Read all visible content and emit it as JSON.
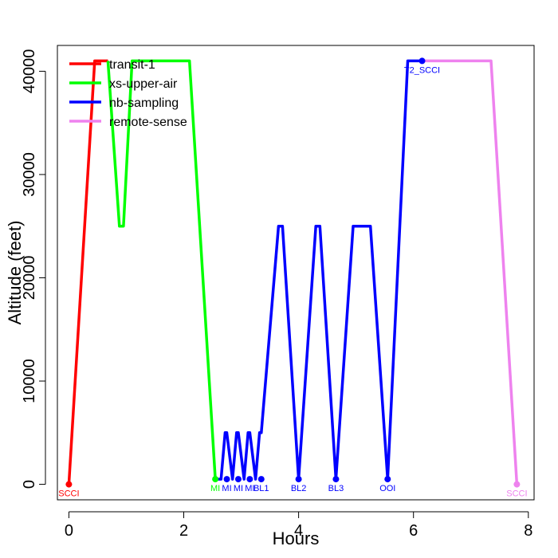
{
  "chart_data": {
    "type": "line",
    "title": "",
    "xlabel": "Hours",
    "ylabel": "Altitude (feet)",
    "xlim": [
      -0.2,
      8.1
    ],
    "ylim": [
      -1500,
      42500
    ],
    "xticks": [
      0,
      2,
      4,
      6,
      8
    ],
    "yticks": [
      0,
      10000,
      20000,
      30000,
      40000
    ],
    "xtick_labels": [
      "0",
      "2",
      "4",
      "6",
      "8"
    ],
    "ytick_labels": [
      "0",
      "10000",
      "20000",
      "30000",
      "40000"
    ],
    "grid": false,
    "legend_position": "top-left",
    "series": [
      {
        "name": "transit-1",
        "color": "#ff0000",
        "x": [
          0,
          0.45,
          0.68
        ],
        "y": [
          0,
          41000,
          41000
        ]
      },
      {
        "name": "xs-upper-air",
        "color": "#00ff00",
        "x": [
          0.68,
          0.88,
          0.95,
          1.1,
          2.1,
          2.55
        ],
        "y": [
          41000,
          25000,
          25000,
          41000,
          41000,
          500
        ]
      },
      {
        "name": "nb-sampling",
        "color": "#0000ff",
        "x": [
          2.55,
          2.65,
          2.72,
          2.75,
          2.85,
          2.92,
          2.95,
          3.05,
          3.12,
          3.15,
          3.25,
          3.32,
          3.35,
          3.65,
          3.72,
          4.0,
          4.3,
          4.37,
          4.65,
          4.95,
          5.25,
          5.55,
          5.9,
          6.0,
          6.15
        ],
        "y": [
          500,
          500,
          5000,
          5000,
          500,
          5000,
          5000,
          500,
          5000,
          5000,
          500,
          5000,
          5000,
          25000,
          25000,
          500,
          25000,
          25000,
          500,
          25000,
          25000,
          500,
          41000,
          41000,
          41000
        ]
      },
      {
        "name": "remote-sense",
        "color": "#ee82ee",
        "x": [
          6.15,
          7.35,
          7.8
        ],
        "y": [
          41000,
          41000,
          0
        ]
      }
    ],
    "waypoints": [
      {
        "label": "SCCI",
        "x": 0,
        "y": 0,
        "color": "#ff0000"
      },
      {
        "label": "MI",
        "x": 2.55,
        "y": 500,
        "color": "#00ff00"
      },
      {
        "label": "MI",
        "x": 2.75,
        "y": 500,
        "color": "#0000ff"
      },
      {
        "label": "MI",
        "x": 2.95,
        "y": 500,
        "color": "#0000ff"
      },
      {
        "label": "MI",
        "x": 3.15,
        "y": 500,
        "color": "#0000ff"
      },
      {
        "label": "BL1",
        "x": 3.35,
        "y": 500,
        "color": "#0000ff"
      },
      {
        "label": "BL2",
        "x": 4.0,
        "y": 500,
        "color": "#0000ff"
      },
      {
        "label": "BL3",
        "x": 4.65,
        "y": 500,
        "color": "#0000ff"
      },
      {
        "label": "OOI",
        "x": 5.55,
        "y": 500,
        "color": "#0000ff"
      },
      {
        "label": "T2_SCCI",
        "x": 6.15,
        "y": 41000,
        "color": "#0000ff"
      },
      {
        "label": "SCCI",
        "x": 7.8,
        "y": 0,
        "color": "#ee82ee"
      }
    ]
  }
}
